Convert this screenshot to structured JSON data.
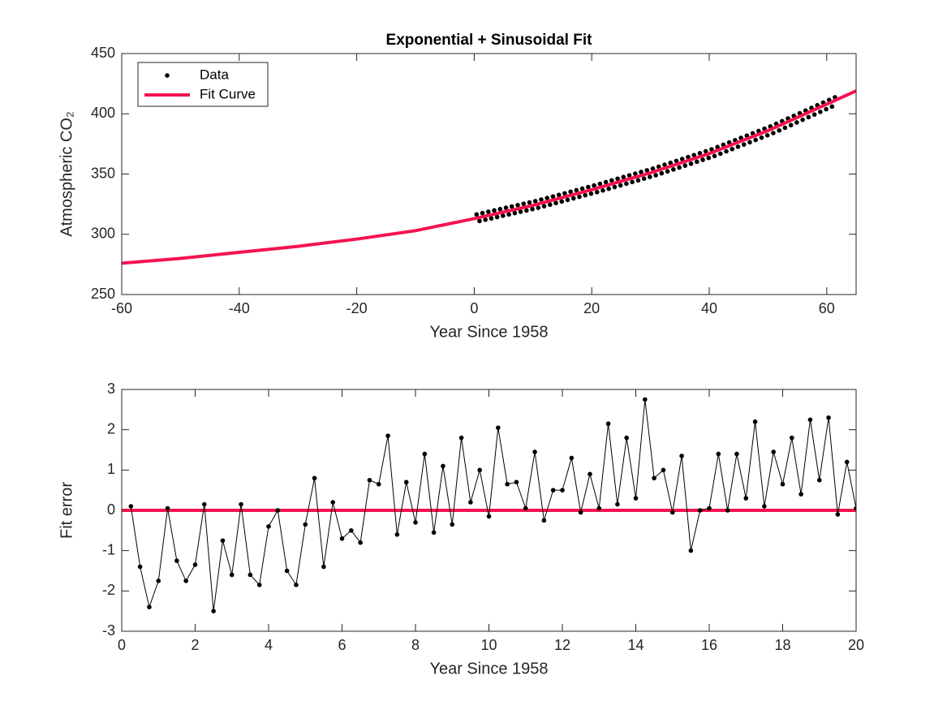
{
  "chart_data": [
    {
      "type": "line",
      "title": "Exponential + Sinusoidal Fit",
      "xlabel": "Year Since 1958",
      "ylabel": "Atmospheric CO₂",
      "xlim": [
        -60,
        65
      ],
      "ylim": [
        250,
        450
      ],
      "xticks": [
        -60,
        -40,
        -20,
        0,
        20,
        40,
        60
      ],
      "yticks": [
        250,
        300,
        350,
        400,
        450
      ],
      "legend": "upper left",
      "series": [
        {
          "name": "Data",
          "color": "#000000",
          "mode": "markers",
          "x": [
            0.4,
            0.9,
            1.4,
            1.9,
            2.4,
            2.9,
            3.4,
            3.9,
            4.4,
            4.9,
            5.4,
            5.9,
            6.4,
            6.9,
            7.4,
            7.9,
            8.4,
            8.9,
            9.4,
            9.9,
            10.4,
            10.9,
            11.4,
            11.9,
            12.4,
            12.9,
            13.4,
            13.9,
            14.4,
            14.9,
            15.4,
            15.9,
            16.4,
            16.9,
            17.4,
            17.9,
            18.4,
            18.9,
            19.4,
            19.9,
            20.4,
            20.9,
            21.4,
            21.9,
            22.4,
            22.9,
            23.4,
            23.9,
            24.4,
            24.9,
            25.4,
            25.9,
            26.4,
            26.9,
            27.4,
            27.9,
            28.4,
            28.9,
            29.4,
            29.9,
            30.4,
            30.9,
            31.4,
            31.9,
            32.4,
            32.9,
            33.4,
            33.9,
            34.4,
            34.9,
            35.4,
            35.9,
            36.4,
            36.9,
            37.4,
            37.9,
            38.4,
            38.9,
            39.4,
            39.9,
            40.4,
            40.9,
            41.4,
            41.9,
            42.4,
            42.9,
            43.4,
            43.9,
            44.4,
            44.9,
            45.4,
            45.9,
            46.4,
            46.9,
            47.4,
            47.9,
            48.4,
            48.9,
            49.4,
            49.9,
            50.4,
            50.9,
            51.4,
            51.9,
            52.4,
            52.9,
            53.4,
            53.9,
            54.4,
            54.9,
            55.4,
            55.9,
            56.4,
            56.9,
            57.4,
            57.9,
            58.4,
            58.9,
            59.4,
            59.9,
            60.4,
            60.9,
            61.4
          ],
          "values": [
            316.5,
            311,
            317.6,
            312.1,
            318.7,
            313.2,
            319.8,
            314.3,
            320.9,
            315.4,
            322,
            316.5,
            323.1,
            317.6,
            324.2,
            318.7,
            325.3,
            319.8,
            326.4,
            320.9,
            327.5,
            322,
            328.8,
            323.3,
            330.1,
            324.6,
            331.4,
            325.9,
            332.7,
            327.2,
            334,
            328.5,
            335.3,
            329.8,
            336.6,
            331.1,
            337.9,
            332.4,
            339.2,
            333.7,
            340.5,
            335,
            341.9,
            336.4,
            343.3,
            337.8,
            344.7,
            339.2,
            346.1,
            340.6,
            347.5,
            342,
            348.9,
            343.4,
            350.3,
            344.8,
            351.7,
            346.2,
            353.1,
            347.6,
            354.5,
            349,
            356.1,
            350.6,
            357.7,
            352.2,
            359.3,
            353.8,
            360.9,
            355.4,
            362.5,
            357,
            364.1,
            358.6,
            365.7,
            360.2,
            367.3,
            361.8,
            368.9,
            363.4,
            370.5,
            365,
            372.4,
            366.9,
            374.3,
            368.8,
            376.2,
            370.7,
            378.1,
            372.6,
            380,
            374.5,
            381.9,
            376.4,
            383.8,
            378.3,
            385.7,
            380.2,
            387.6,
            382.1,
            389.5,
            384,
            391.7,
            386.2,
            393.9,
            388.4,
            396.1,
            390.6,
            398.3,
            392.8,
            400.5,
            395,
            402.7,
            397.2,
            404.9,
            399.4,
            407.1,
            401.6,
            409.3,
            403.8,
            411.5,
            406,
            413.7
          ]
        },
        {
          "name": "Fit Curve",
          "color": "#f5134f",
          "mode": "lines",
          "x": [
            -60,
            -50,
            -40,
            -30,
            -20,
            -10,
            0,
            10,
            20,
            30,
            40,
            50,
            60,
            65
          ],
          "values": [
            276,
            280,
            285,
            290,
            296,
            303,
            313,
            324,
            337,
            351,
            367,
            386,
            408,
            419
          ]
        }
      ]
    },
    {
      "type": "line",
      "xlabel": "Year Since 1958",
      "ylabel": "Fit error",
      "xlim": [
        0,
        20
      ],
      "ylim": [
        -3,
        3
      ],
      "xticks": [
        0,
        2,
        4,
        6,
        8,
        10,
        12,
        14,
        16,
        18,
        20
      ],
      "yticks": [
        -3,
        -2,
        -1,
        0,
        1,
        2,
        3
      ],
      "series": [
        {
          "color": "#f5134f",
          "mode": "lines",
          "x": [
            0,
            20
          ],
          "values": [
            0,
            0
          ]
        },
        {
          "color": "#000000",
          "mode": "lines+markers",
          "x": [
            0.25,
            0.5,
            0.75,
            1,
            1.25,
            1.5,
            1.75,
            2,
            2.25,
            2.5,
            2.75,
            3,
            3.25,
            3.5,
            3.75,
            4,
            4.25,
            4.5,
            4.75,
            5,
            5.25,
            5.5,
            5.75,
            6,
            6.25,
            6.5,
            6.75,
            7,
            7.25,
            7.5,
            7.75,
            8,
            8.25,
            8.5,
            8.75,
            9,
            9.25,
            9.5,
            9.75,
            10,
            10.25,
            10.5,
            10.75,
            11,
            11.25,
            11.5,
            11.75,
            12,
            12.25,
            12.5,
            12.75,
            13,
            13.25,
            13.5,
            13.75,
            14,
            14.25,
            14.5,
            14.75,
            15,
            15.25,
            15.5,
            15.75,
            16,
            16.25,
            16.5,
            16.75,
            17,
            17.25,
            17.5,
            17.75,
            18,
            18.25,
            18.5,
            18.75,
            19,
            19.25,
            19.5,
            19.75,
            20
          ],
          "values": [
            0.1,
            -1.4,
            -2.4,
            -1.75,
            0.05,
            -1.25,
            -1.75,
            -1.35,
            0.15,
            -2.5,
            -0.75,
            -1.6,
            0.15,
            -1.6,
            -1.85,
            -0.4,
            0,
            -1.5,
            -1.85,
            -0.35,
            0.8,
            -1.4,
            0.2,
            -0.7,
            -0.5,
            -0.8,
            0.75,
            0.65,
            1.85,
            -0.6,
            0.7,
            -0.3,
            1.4,
            -0.55,
            1.1,
            -0.35,
            1.8,
            0.2,
            1,
            -0.15,
            2.05,
            0.65,
            0.7,
            0.05,
            1.45,
            -0.25,
            0.5,
            0.5,
            1.3,
            -0.05,
            0.9,
            0.05,
            2.15,
            0.15,
            1.8,
            0.3,
            2.75,
            0.8,
            1,
            -0.05,
            1.35,
            -1,
            0,
            0.05,
            1.4,
            0,
            1.4,
            0.3,
            2.2,
            0.1,
            1.45,
            0.65,
            1.8,
            0.4,
            2.25,
            0.75,
            2.3,
            -0.1,
            1.2,
            0.05
          ]
        }
      ]
    }
  ]
}
